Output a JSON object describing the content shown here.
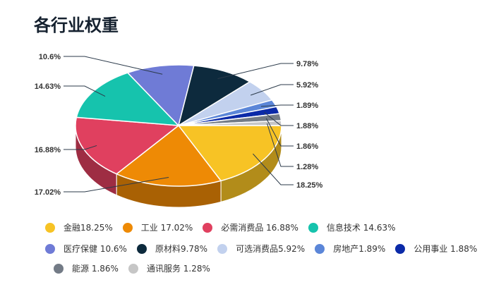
{
  "page": {
    "title": "各行业权重"
  },
  "chart_data": {
    "type": "pie",
    "title": "",
    "slices": [
      {
        "name": "金融",
        "value": 18.25,
        "label": "18.25%",
        "legend": "金融18.25%",
        "color": "#f7c325",
        "side": "#b28c1a"
      },
      {
        "name": "工业",
        "value": 17.02,
        "label": "17.02%",
        "legend": "工业 17.02%",
        "color": "#ee8a05",
        "side": "#a96104"
      },
      {
        "name": "必需消费品",
        "value": 16.88,
        "label": "16.88%",
        "legend": "必需消费品 16.88%",
        "color": "#e0405f",
        "side": "#9e2d43"
      },
      {
        "name": "信息技术",
        "value": 14.63,
        "label": "14.63%",
        "legend": "信息技术 14.63%",
        "color": "#16c3ad",
        "side": "#0f8a7a"
      },
      {
        "name": "医疗保健",
        "value": 10.6,
        "label": "10.6%",
        "legend": "医疗保健 10.6%",
        "color": "#6f7bd6",
        "side": "#4e5797"
      },
      {
        "name": "原材料",
        "value": 9.78,
        "label": "9.78%",
        "legend": "原材料9.78%",
        "color": "#0d2a3d",
        "side": "#091d2b"
      },
      {
        "name": "可选消费品",
        "value": 5.92,
        "label": "5.92%",
        "legend": "可选消费品5.92%",
        "color": "#c2d1ee",
        "side": "#8993a8"
      },
      {
        "name": "房地产",
        "value": 1.89,
        "label": "1.89%",
        "legend": "房地产1.89%",
        "color": "#5b86d8",
        "side": "#405e99"
      },
      {
        "name": "公用事业",
        "value": 1.88,
        "label": "1.88%",
        "legend": "公用事业 1.88%",
        "color": "#0b2aa8",
        "side": "#081e77"
      },
      {
        "name": "能源",
        "value": 1.86,
        "label": "1.86%",
        "legend": "能源 1.86%",
        "color": "#737b86",
        "side": "#51575f"
      },
      {
        "name": "通讯服务",
        "value": 1.28,
        "label": "1.28%",
        "legend": "通讯服务 1.28%",
        "color": "#c6c6c6",
        "side": "#8c8c8c"
      }
    ]
  }
}
